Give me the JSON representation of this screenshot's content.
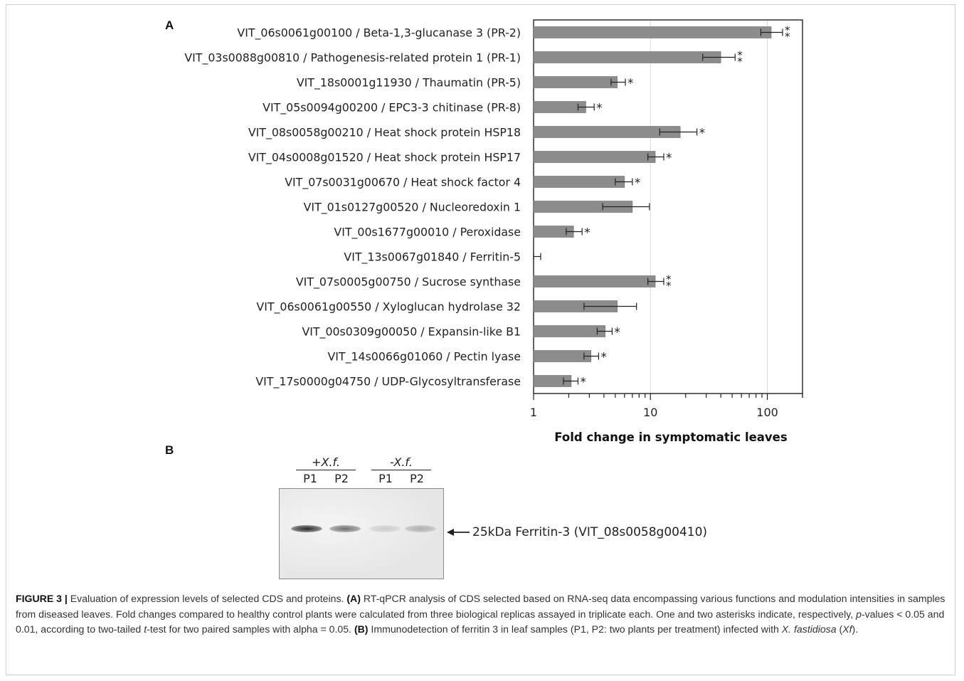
{
  "panel_a_label": "A",
  "panel_b_label": "B",
  "chart_data": {
    "type": "bar",
    "orientation": "horizontal",
    "xscale": "log",
    "xlim": [
      1,
      200
    ],
    "xticks": [
      1,
      10,
      100
    ],
    "xlabel": "Fold change in symptomatic leaves",
    "categories": [
      "VIT_06s0061g00100 / Beta-1,3-glucanase 3 (PR-2)",
      "VIT_03s0088g00810 / Pathogenesis-related protein 1 (PR-1)",
      "VIT_18s0001g11930 / Thaumatin (PR-5)",
      "VIT_05s0094g00200 / EPC3-3 chitinase (PR-8)",
      "VIT_08s0058g00210 / Heat shock protein HSP18",
      "VIT_04s0008g01520 / Heat shock protein HSP17",
      "VIT_07s0031g00670 / Heat shock factor 4",
      "VIT_01s0127g00520 / Nucleoredoxin 1",
      "VIT_00s1677g00010 / Peroxidase",
      "VIT_13s0067g01840 / Ferritin-5",
      "VIT_07s0005g00750 / Sucrose synthase",
      "VIT_06s0061g00550 / Xyloglucan hydrolase 32",
      "VIT_00s0309g00050 / Expansin-like B1",
      "VIT_14s0066g01060 / Pectin lyase",
      "VIT_17s0000g04750 / UDP-Glycosyltransferase"
    ],
    "values": [
      108,
      40,
      5.2,
      2.8,
      18,
      11,
      6,
      7,
      2.2,
      1.0,
      11,
      5.2,
      4.1,
      3.1,
      2.1
    ],
    "error_low": [
      88,
      28,
      4.6,
      2.4,
      12,
      9.5,
      5.0,
      3.9,
      1.9,
      1.0,
      9.5,
      2.7,
      3.5,
      2.7,
      1.8
    ],
    "error_high": [
      135,
      53,
      6.1,
      3.3,
      25,
      13,
      7.0,
      9.8,
      2.6,
      1.15,
      13,
      7.6,
      4.7,
      3.6,
      2.4
    ],
    "significance": [
      "**",
      "**",
      "*",
      "*",
      "*",
      "*",
      "*",
      "",
      "*",
      "",
      "**",
      "",
      "*",
      "*",
      "*"
    ],
    "grid": "vertical at 10 and 100",
    "bar_color": "#8c8c8c"
  },
  "blot": {
    "group1_label": "+X.f.",
    "group2_label": "-X.f.",
    "lanes": [
      "P1",
      "P2",
      "P1",
      "P2"
    ],
    "band_label": "25kDa Ferritin-3 (VIT_08s0058g00410)",
    "band_intensity": [
      0.95,
      0.6,
      0.15,
      0.3
    ]
  },
  "caption": {
    "figure_label": "FIGURE 3 |",
    "lead": " Evaluation of expression levels of selected CDS and proteins. ",
    "part_a_label": "(A)",
    "part_a_text_1": " RT-qPCR analysis of CDS selected based on RNA-seq data encompassing various functions and modulation intensities in samples from diseased leaves. Fold changes compared to healthy control plants were calculated from three biological replicas assayed in triplicate each. One and two asterisks indicate, respectively, ",
    "p_symbol": "p",
    "part_a_text_2": "-values < 0.05 and 0.01, according to two-tailed ",
    "t_symbol": "t",
    "part_a_text_3": "-test for two paired samples with alpha = 0.05. ",
    "part_b_label": "(B)",
    "part_b_text_1": " Immunodetection of ferritin 3 in leaf samples (P1, P2: two plants per treatment) infected with ",
    "species": "X. fastidiosa",
    "part_b_text_2": " (",
    "abbrev": "Xf",
    "part_b_text_3": ")."
  }
}
